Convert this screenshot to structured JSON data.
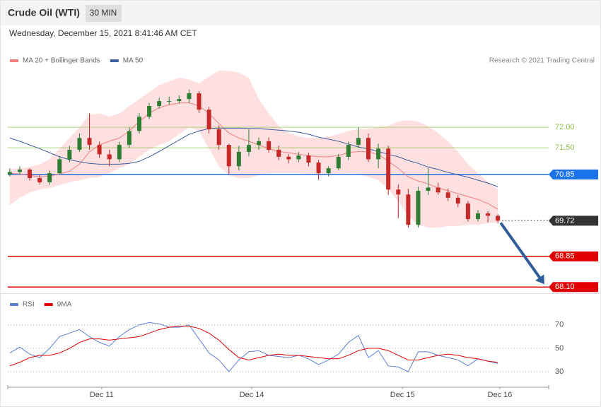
{
  "header": {
    "instrument": "Crude Oil (WTI)",
    "interval": "30 MIN",
    "timestamp": "Wednesday, December 15, 2021 8:41:46 AM CET",
    "credit": "Research © 2021 Trading Central"
  },
  "chart_data": [
    {
      "type": "candlestick",
      "up_color": "#2e7d32",
      "down_color": "#c62828",
      "xlim": [
        -0.2,
        54.1
      ],
      "ylim": [
        67.95,
        73.9
      ],
      "open": [
        70.85,
        70.91,
        70.97,
        70.76,
        70.66,
        70.88,
        71.22,
        71.45,
        71.74,
        71.57,
        71.34,
        71.22,
        71.57,
        71.91,
        72.26,
        72.52,
        72.64,
        72.64,
        72.69,
        72.83,
        72.43,
        71.95,
        71.57,
        71.05,
        71.4,
        71.57,
        71.66,
        71.45,
        71.28,
        71.22,
        71.31,
        71.14,
        70.88,
        71.0,
        71.28,
        71.57,
        71.74,
        71.22,
        71.48,
        70.48,
        70.36,
        69.62,
        70.45,
        70.53,
        70.41,
        70.28,
        70.14,
        69.76,
        69.9,
        69.84
      ],
      "high": [
        71.0,
        71.05,
        71.0,
        70.85,
        70.95,
        71.3,
        71.55,
        71.85,
        72.34,
        71.65,
        71.45,
        71.65,
        72.0,
        72.35,
        72.6,
        72.72,
        72.75,
        72.78,
        72.92,
        72.88,
        72.5,
        72.05,
        71.6,
        71.55,
        71.95,
        71.75,
        71.75,
        71.55,
        71.35,
        71.4,
        71.38,
        71.2,
        71.05,
        71.35,
        71.65,
        72.0,
        71.85,
        71.6,
        71.55,
        70.6,
        70.5,
        70.55,
        71.0,
        70.65,
        70.5,
        70.35,
        70.2,
        69.98,
        69.95,
        69.88
      ],
      "low": [
        70.8,
        70.85,
        70.7,
        70.6,
        70.6,
        70.85,
        71.15,
        71.4,
        71.45,
        71.25,
        71.05,
        71.15,
        71.5,
        71.85,
        72.2,
        72.45,
        72.55,
        72.58,
        72.6,
        72.35,
        71.85,
        71.45,
        70.85,
        70.95,
        71.3,
        71.45,
        71.38,
        71.2,
        71.12,
        71.15,
        71.05,
        70.72,
        70.8,
        70.95,
        71.2,
        71.5,
        71.15,
        71.0,
        70.35,
        69.78,
        69.55,
        69.55,
        70.35,
        70.35,
        70.2,
        70.05,
        69.7,
        69.7,
        69.68,
        69.65
      ],
      "close": [
        70.91,
        70.97,
        70.76,
        70.66,
        70.88,
        71.22,
        71.45,
        71.74,
        71.57,
        71.34,
        71.22,
        71.57,
        71.91,
        72.26,
        72.52,
        72.64,
        72.64,
        72.69,
        72.83,
        72.43,
        71.95,
        71.57,
        71.05,
        71.4,
        71.57,
        71.66,
        71.45,
        71.28,
        71.22,
        71.31,
        71.14,
        70.88,
        71.0,
        71.28,
        71.57,
        71.74,
        71.22,
        71.48,
        70.48,
        70.36,
        69.62,
        70.45,
        70.53,
        70.41,
        70.28,
        70.14,
        69.76,
        69.9,
        69.84,
        69.72
      ],
      "series": [
        {
          "name": "MA 20 + Bollinger Bands",
          "color": "#f08080",
          "band_color": "#ffe0e0",
          "values": [
            70.88,
            70.86,
            70.83,
            70.79,
            70.81,
            70.86,
            70.93,
            71.1,
            71.4,
            71.57,
            71.66,
            71.74,
            71.91,
            72.14,
            72.34,
            72.48,
            72.55,
            72.59,
            72.6,
            72.52,
            72.34,
            72.09,
            71.86,
            71.74,
            71.66,
            71.57,
            71.48,
            71.41,
            71.38,
            71.34,
            71.31,
            71.28,
            71.28,
            71.31,
            71.38,
            71.41,
            71.4,
            71.34,
            71.17,
            71.0,
            70.79,
            70.69,
            70.62,
            70.52,
            70.45,
            70.38,
            70.31,
            70.24,
            70.14,
            70.0
          ],
          "upper": [
            70.97,
            71.0,
            71.03,
            71.1,
            71.22,
            71.48,
            71.74,
            72.0,
            72.31,
            72.34,
            72.26,
            72.34,
            72.52,
            72.69,
            72.86,
            73.03,
            73.12,
            73.21,
            73.17,
            73.07,
            73.24,
            73.38,
            73.38,
            73.33,
            73.21,
            72.69,
            72.34,
            72.03,
            71.86,
            71.78,
            71.74,
            71.74,
            71.78,
            71.83,
            71.91,
            71.95,
            71.97,
            72.0,
            72.03,
            72.14,
            72.17,
            72.14,
            72.03,
            71.86,
            71.66,
            71.4,
            71.1,
            70.88,
            70.66,
            70.48
          ],
          "lower": [
            70.1,
            70.28,
            70.41,
            70.48,
            70.52,
            70.59,
            70.66,
            70.71,
            70.76,
            70.79,
            70.88,
            71.0,
            71.1,
            71.28,
            71.45,
            71.57,
            71.66,
            71.83,
            72.0,
            71.91,
            71.48,
            71.05,
            70.83,
            70.76,
            70.76,
            70.83,
            70.88,
            70.88,
            70.88,
            70.88,
            70.86,
            70.83,
            70.83,
            70.86,
            70.88,
            70.86,
            70.79,
            70.71,
            70.48,
            70.19,
            69.84,
            69.62,
            69.55,
            69.55,
            69.59,
            69.59,
            69.62,
            69.62,
            69.66,
            69.67
          ]
        },
        {
          "name": "MA 50",
          "color": "#3b5fa0",
          "values": [
            71.74,
            71.66,
            71.57,
            71.48,
            71.38,
            71.28,
            71.21,
            71.16,
            71.12,
            71.1,
            71.1,
            71.1,
            71.12,
            71.17,
            71.28,
            71.41,
            71.55,
            71.69,
            71.83,
            71.91,
            71.97,
            71.98,
            71.98,
            71.98,
            71.97,
            71.97,
            71.95,
            71.93,
            71.91,
            71.88,
            71.83,
            71.76,
            71.71,
            71.66,
            71.59,
            71.52,
            71.47,
            71.41,
            71.34,
            71.28,
            71.19,
            71.12,
            71.03,
            70.97,
            70.9,
            70.84,
            70.78,
            70.71,
            70.64,
            70.55
          ]
        }
      ],
      "levels": [
        {
          "value": 72,
          "label": "72.00",
          "color": "#8bc34a",
          "badge": false,
          "line": "solid"
        },
        {
          "value": 71.5,
          "label": "71.50",
          "color": "#8bc34a",
          "badge": false,
          "line": "solid"
        },
        {
          "value": 70.85,
          "label": "70.85",
          "color": "#1a73e8",
          "badge": true,
          "line": "solid"
        },
        {
          "value": 69.72,
          "label": "69.72",
          "color": "#333333",
          "badge": true,
          "line": "dotted"
        },
        {
          "value": 68.85,
          "label": "68.85",
          "color": "#e00000",
          "badge": true,
          "line": "solid"
        },
        {
          "value": 68.1,
          "label": "68.10",
          "color": "#e00000",
          "badge": true,
          "line": "solid"
        }
      ]
    },
    {
      "type": "line",
      "xlim": [
        -0.2,
        54.1
      ],
      "ylim": [
        18.5,
        82
      ],
      "yticks": [
        30,
        50,
        70
      ],
      "grid": true,
      "xticks": [
        {
          "value": 9.23,
          "label": "Dec 11"
        },
        {
          "value": 24.29,
          "label": "Dec 14"
        },
        {
          "value": 39.42,
          "label": "Dec 15"
        },
        {
          "value": 49.2,
          "label": "Dec 16"
        }
      ],
      "series": [
        {
          "name": "RSI",
          "color": "#5b7fd6",
          "values": [
            46,
            51,
            45,
            42,
            50,
            60,
            63,
            66,
            60,
            55,
            52,
            60,
            66,
            70,
            72,
            71,
            68,
            68,
            70,
            58,
            46,
            40,
            30,
            40,
            47,
            48,
            44,
            43,
            42,
            44,
            41,
            36,
            40,
            45,
            55,
            61,
            42,
            48,
            35,
            34,
            30,
            47,
            47,
            44,
            42,
            40,
            35,
            41,
            39,
            37
          ]
        },
        {
          "name": "9MA",
          "color": "#e00000",
          "values": [
            35,
            38,
            42,
            44,
            44,
            46,
            50,
            55,
            58,
            58,
            57,
            58,
            59,
            60,
            63,
            66,
            68,
            69,
            69,
            67,
            63,
            57,
            49,
            42,
            40,
            42,
            44,
            45,
            44,
            44,
            43,
            42,
            41,
            41,
            44,
            48,
            50,
            50,
            48,
            44,
            40,
            40,
            42,
            44,
            45,
            44,
            42,
            41,
            39,
            38
          ]
        }
      ]
    }
  ]
}
